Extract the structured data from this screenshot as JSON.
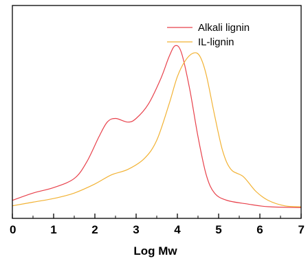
{
  "chart_data": {
    "type": "line",
    "title": "",
    "xlabel": "Log Mw",
    "ylabel": "",
    "xlim": [
      0,
      7
    ],
    "ylim": [
      0,
      1
    ],
    "x_ticks": [
      "0",
      "1",
      "2",
      "3",
      "4",
      "5",
      "6",
      "7"
    ],
    "y_ticks_shown": false,
    "grid": false,
    "legend_position": "top-right",
    "series": [
      {
        "name": "Alkali lignin",
        "color": "#e8414b",
        "points": [
          [
            0.0,
            0.05
          ],
          [
            0.5,
            0.09
          ],
          [
            1.0,
            0.12
          ],
          [
            1.5,
            0.17
          ],
          [
            1.8,
            0.26
          ],
          [
            2.1,
            0.4
          ],
          [
            2.3,
            0.48
          ],
          [
            2.5,
            0.5
          ],
          [
            2.8,
            0.48
          ],
          [
            3.0,
            0.5
          ],
          [
            3.3,
            0.58
          ],
          [
            3.6,
            0.72
          ],
          [
            3.8,
            0.84
          ],
          [
            3.95,
            0.9
          ],
          [
            4.1,
            0.86
          ],
          [
            4.3,
            0.66
          ],
          [
            4.5,
            0.4
          ],
          [
            4.7,
            0.19
          ],
          [
            4.9,
            0.09
          ],
          [
            5.2,
            0.05
          ],
          [
            5.7,
            0.03
          ],
          [
            6.2,
            0.015
          ],
          [
            7.0,
            0.01
          ]
        ]
      },
      {
        "name": "IL-lignin",
        "color": "#f2b233",
        "points": [
          [
            0.0,
            0.02
          ],
          [
            0.5,
            0.04
          ],
          [
            1.0,
            0.06
          ],
          [
            1.5,
            0.09
          ],
          [
            2.0,
            0.14
          ],
          [
            2.4,
            0.19
          ],
          [
            2.8,
            0.22
          ],
          [
            3.2,
            0.28
          ],
          [
            3.5,
            0.38
          ],
          [
            3.8,
            0.58
          ],
          [
            4.0,
            0.73
          ],
          [
            4.2,
            0.82
          ],
          [
            4.4,
            0.86
          ],
          [
            4.55,
            0.84
          ],
          [
            4.7,
            0.74
          ],
          [
            4.9,
            0.52
          ],
          [
            5.1,
            0.32
          ],
          [
            5.3,
            0.22
          ],
          [
            5.6,
            0.18
          ],
          [
            5.9,
            0.1
          ],
          [
            6.2,
            0.05
          ],
          [
            6.6,
            0.02
          ],
          [
            7.0,
            0.015
          ]
        ]
      }
    ]
  }
}
